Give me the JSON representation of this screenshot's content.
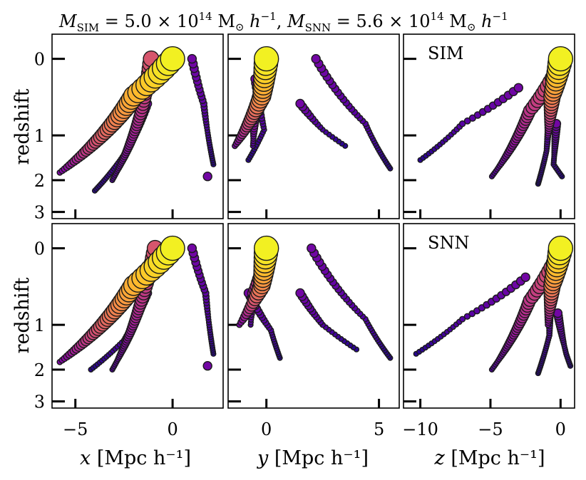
{
  "chart_data": {
    "type": "scatter",
    "title": "M_SIM = 5.0 × 10^14 M⊙ h^-1,  M_SNN = 5.6 × 10^14 M⊙ h^-1",
    "title_parts": {
      "sim_symbol": "M",
      "sim_sub": "SIM",
      "sim_value": " = 5.0 × 10",
      "sim_exp": "14",
      "sim_unit": " M",
      "sim_unit_sub": "⊙",
      "h_symbol": "h",
      "h_exp": "−1",
      "separator": ",",
      "snn_symbol": "M",
      "snn_sub": "SNN",
      "snn_value": " = 5.6 × 10",
      "snn_exp": "14"
    },
    "ylabel": "redshift",
    "ylim": [
      3.25,
      -0.2
    ],
    "yticks": [
      0,
      1,
      2,
      3
    ],
    "ytick_labels": [
      "0",
      "1",
      "2",
      "3"
    ],
    "y_scale": "log(1+z)",
    "columns": [
      {
        "axis": "x",
        "xlabel_var": "x",
        "xlabel_unit": "[Mpc h⁻¹]",
        "xlim": [
          -6.2,
          2.6
        ],
        "xticks": [
          -5,
          0
        ],
        "xtick_labels": [
          "−5",
          "0"
        ]
      },
      {
        "axis": "y",
        "xlabel_var": "y",
        "xlabel_unit": "[Mpc h⁻¹]",
        "xlim": [
          -1.7,
          5.9
        ],
        "xticks": [
          0,
          5
        ],
        "xtick_labels": [
          "0",
          "5"
        ]
      },
      {
        "axis": "z",
        "xlabel_var": "z",
        "xlabel_unit": "[Mpc h⁻¹]",
        "xlim": [
          -11.2,
          1.0
        ],
        "xticks": [
          -10,
          -5,
          0
        ],
        "xtick_labels": [
          "−10",
          "−5",
          "0"
        ]
      }
    ],
    "rows": [
      {
        "label": "SIM",
        "branches": [
          {
            "mass": "main",
            "x": [
              [
                0.0,
                0.0
              ],
              [
                -2.0,
                0.4
              ],
              [
                -5.8,
                1.8
              ]
            ],
            "y": [
              [
                0.0,
                0.0
              ],
              [
                -0.2,
                0.4
              ],
              [
                -1.4,
                1.2
              ]
            ],
            "z": [
              [
                0.0,
                0.0
              ],
              [
                -0.6,
                0.4
              ],
              [
                -0.9,
                1.0
              ]
            ]
          },
          {
            "mass": "mid",
            "x": [
              [
                -1.1,
                0.0
              ],
              [
                -1.6,
                0.6
              ],
              [
                -3.1,
                2.0
              ]
            ],
            "y": [
              [
                -0.05,
                0.15
              ],
              [
                -0.5,
                0.55
              ],
              [
                -0.6,
                1.2
              ]
            ],
            "z": [
              [
                -0.2,
                0.1
              ],
              [
                -2.2,
                0.6
              ],
              [
                -4.9,
                1.9
              ]
            ]
          },
          {
            "mass": "low",
            "x": [
              [
                1.0,
                0.0
              ],
              [
                1.6,
                0.5
              ],
              [
                2.1,
                1.6
              ]
            ],
            "y": [
              [
                2.2,
                0.0
              ],
              [
                4.4,
                0.8
              ],
              [
                5.5,
                1.7
              ]
            ],
            "z": [
              [
                -0.7,
                0.3
              ],
              [
                -1.0,
                1.3
              ],
              [
                -1.6,
                2.1
              ]
            ]
          },
          {
            "mass": "low",
            "x": [
              [
                -1.3,
                0.5
              ],
              [
                -2.2,
                1.2
              ],
              [
                -4.0,
                2.3
              ]
            ],
            "y": [
              [
                -0.5,
                0.2
              ],
              [
                -0.1,
                0.9
              ],
              [
                -0.8,
                1.5
              ]
            ],
            "z": [
              [
                -3.0,
                0.3
              ],
              [
                -7.0,
                0.8
              ],
              [
                -10.0,
                1.5
              ]
            ]
          },
          {
            "mass": "low",
            "x": [
              [
                1.8,
                1.9
              ]
            ],
            "y": [
              [
                1.5,
                0.5
              ],
              [
                2.5,
                0.9
              ],
              [
                3.5,
                1.2
              ]
            ],
            "z": [
              [
                -0.3,
                0.8
              ],
              [
                -0.5,
                1.6
              ],
              [
                0.1,
                1.9
              ]
            ]
          }
        ]
      },
      {
        "label": "SNN",
        "branches": [
          {
            "mass": "main",
            "x": [
              [
                0.0,
                0.0
              ],
              [
                -2.0,
                0.4
              ],
              [
                -5.8,
                1.8
              ]
            ],
            "y": [
              [
                0.0,
                0.0
              ],
              [
                -0.2,
                0.4
              ],
              [
                -1.2,
                1.0
              ]
            ],
            "z": [
              [
                0.0,
                0.0
              ],
              [
                -0.6,
                0.4
              ],
              [
                -0.9,
                1.0
              ]
            ]
          },
          {
            "mass": "mid",
            "x": [
              [
                -0.9,
                0.0
              ],
              [
                -1.6,
                0.6
              ],
              [
                -3.1,
                2.0
              ]
            ],
            "y": [
              [
                0.0,
                0.1
              ],
              [
                -0.6,
                0.5
              ],
              [
                -0.7,
                1.0
              ]
            ],
            "z": [
              [
                -0.3,
                0.1
              ],
              [
                -2.2,
                0.6
              ],
              [
                -4.9,
                2.0
              ]
            ]
          },
          {
            "mass": "low",
            "x": [
              [
                1.0,
                0.0
              ],
              [
                1.7,
                0.5
              ],
              [
                2.1,
                1.6
              ]
            ],
            "y": [
              [
                2.0,
                0.0
              ],
              [
                4.4,
                0.9
              ],
              [
                5.5,
                1.7
              ]
            ],
            "z": [
              [
                -0.7,
                0.3
              ],
              [
                -0.8,
                1.2
              ],
              [
                -1.6,
                2.1
              ]
            ]
          },
          {
            "mass": "low",
            "x": [
              [
                -1.3,
                0.5
              ],
              [
                -2.5,
                1.3
              ],
              [
                -4.2,
                2.0
              ]
            ],
            "y": [
              [
                -0.8,
                0.5
              ],
              [
                0.2,
                1.1
              ],
              [
                0.6,
                1.7
              ]
            ],
            "z": [
              [
                -2.5,
                0.3
              ],
              [
                -7.0,
                0.9
              ],
              [
                -10.3,
                1.6
              ]
            ]
          },
          {
            "mass": "low",
            "x": [
              [
                1.8,
                1.9
              ]
            ],
            "y": [
              [
                1.5,
                0.5
              ],
              [
                2.5,
                1.0
              ],
              [
                4.0,
                1.5
              ]
            ],
            "z": [
              [
                -0.2,
                0.8
              ],
              [
                0.4,
                1.6
              ],
              [
                0.7,
                1.9
              ]
            ]
          }
        ]
      }
    ]
  }
}
